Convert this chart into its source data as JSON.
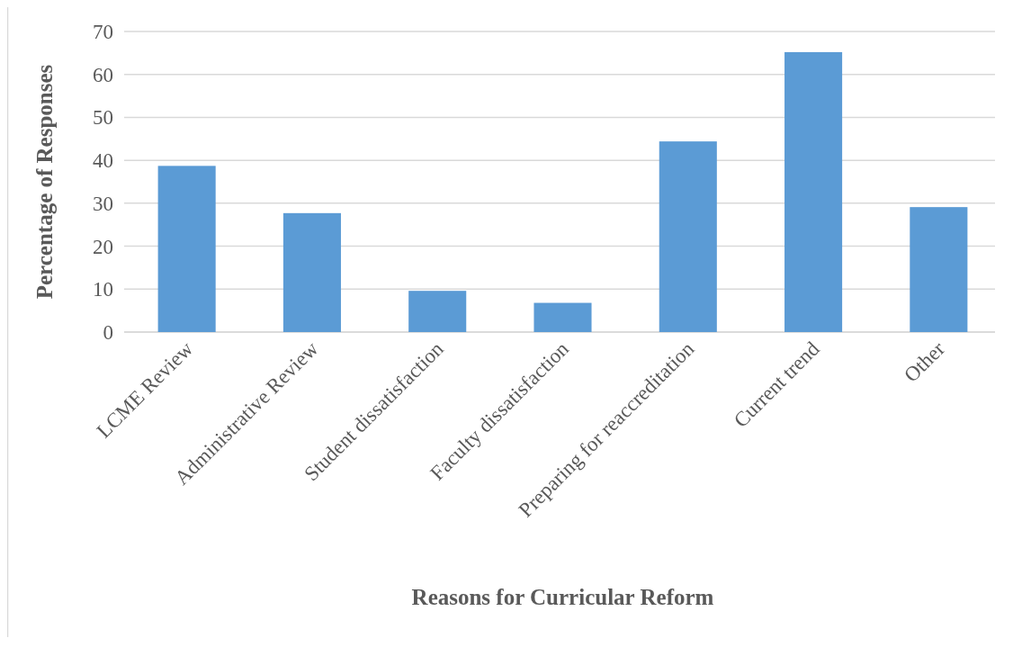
{
  "chart_data": {
    "type": "bar",
    "xlabel": "Reasons for Curricular Reform",
    "ylabel": "Percentage of Responses",
    "categories": [
      "LCME Review",
      "Administrative Review",
      "Student dissatisfaction",
      "Faculty dissatisfaction",
      "Preparing for reaccreditation",
      "Current trend",
      "Other"
    ],
    "values": [
      38.7,
      27.7,
      9.6,
      6.8,
      44.4,
      65.2,
      29.1
    ],
    "color": "#5b9bd5",
    "ylim": [
      0,
      70
    ],
    "yticks": [
      0,
      10,
      20,
      30,
      40,
      50,
      60,
      70
    ],
    "grid": "y"
  }
}
